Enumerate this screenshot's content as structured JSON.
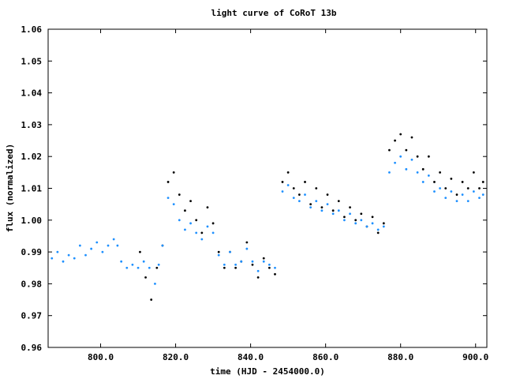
{
  "chart_data": {
    "type": "scatter",
    "title": "light curve of CoRoT 13b",
    "xlabel": "time (HJD - 2454000.0)",
    "ylabel": "flux (normalized)",
    "xlim": [
      786,
      903
    ],
    "ylim": [
      0.96,
      1.06
    ],
    "x_ticks": [
      {
        "value": 800,
        "label": "800.0"
      },
      {
        "value": 820,
        "label": "820.0"
      },
      {
        "value": 840,
        "label": "840.0"
      },
      {
        "value": 860,
        "label": "860.0"
      },
      {
        "value": 880,
        "label": "880.0"
      },
      {
        "value": 900,
        "label": "900.0"
      }
    ],
    "y_ticks": [
      {
        "value": 0.96,
        "label": "0.96"
      },
      {
        "value": 0.97,
        "label": "0.97"
      },
      {
        "value": 0.98,
        "label": "0.98"
      },
      {
        "value": 0.99,
        "label": "0.99"
      },
      {
        "value": 1.0,
        "label": "1.00"
      },
      {
        "value": 1.01,
        "label": "1.01"
      },
      {
        "value": 1.02,
        "label": "1.02"
      },
      {
        "value": 1.03,
        "label": "1.03"
      },
      {
        "value": 1.04,
        "label": "1.04"
      },
      {
        "value": 1.05,
        "label": "1.05"
      },
      {
        "value": 1.06,
        "label": "1.06"
      }
    ],
    "grid": false,
    "series": [
      {
        "color": "#000000",
        "points": [
          [
            810.5,
            0.99
          ],
          [
            812.0,
            0.982
          ],
          [
            813.5,
            0.975
          ],
          [
            815.0,
            0.985
          ],
          [
            816.5,
            0.992
          ],
          [
            818.0,
            1.012
          ],
          [
            819.5,
            1.015
          ],
          [
            821.0,
            1.008
          ],
          [
            822.5,
            1.003
          ],
          [
            824.0,
            1.006
          ],
          [
            825.5,
            1.0
          ],
          [
            827.0,
            0.996
          ],
          [
            828.5,
            1.004
          ],
          [
            830.0,
            0.999
          ],
          [
            831.5,
            0.99
          ],
          [
            833.0,
            0.985
          ],
          [
            834.5,
            0.99
          ],
          [
            836.0,
            0.985
          ],
          [
            837.5,
            0.987
          ],
          [
            839.0,
            0.993
          ],
          [
            840.5,
            0.986
          ],
          [
            842.0,
            0.982
          ],
          [
            843.5,
            0.988
          ],
          [
            845.0,
            0.985
          ],
          [
            846.5,
            0.983
          ],
          [
            848.5,
            1.012
          ],
          [
            850.0,
            1.015
          ],
          [
            851.5,
            1.01
          ],
          [
            853.0,
            1.008
          ],
          [
            854.5,
            1.012
          ],
          [
            856.0,
            1.005
          ],
          [
            857.5,
            1.01
          ],
          [
            859.0,
            1.004
          ],
          [
            860.5,
            1.008
          ],
          [
            862.0,
            1.003
          ],
          [
            863.5,
            1.006
          ],
          [
            865.0,
            1.001
          ],
          [
            866.5,
            1.004
          ],
          [
            868.0,
            1.0
          ],
          [
            869.5,
            1.002
          ],
          [
            871.0,
            0.998
          ],
          [
            872.5,
            1.001
          ],
          [
            874.0,
            0.996
          ],
          [
            875.5,
            0.999
          ],
          [
            877.0,
            1.022
          ],
          [
            878.5,
            1.025
          ],
          [
            880.0,
            1.027
          ],
          [
            881.5,
            1.022
          ],
          [
            883.0,
            1.026
          ],
          [
            884.5,
            1.02
          ],
          [
            886.0,
            1.016
          ],
          [
            887.5,
            1.02
          ],
          [
            889.0,
            1.012
          ],
          [
            890.5,
            1.015
          ],
          [
            892.0,
            1.01
          ],
          [
            893.5,
            1.013
          ],
          [
            895.0,
            1.008
          ],
          [
            896.5,
            1.012
          ],
          [
            898.0,
            1.01
          ],
          [
            899.5,
            1.015
          ],
          [
            901.0,
            1.01
          ],
          [
            902.0,
            1.012
          ]
        ]
      },
      {
        "color": "#1e90ff",
        "points": [
          [
            787.0,
            0.988
          ],
          [
            788.5,
            0.99
          ],
          [
            790.0,
            0.987
          ],
          [
            791.5,
            0.989
          ],
          [
            793.0,
            0.988
          ],
          [
            794.5,
            0.992
          ],
          [
            796.0,
            0.989
          ],
          [
            797.5,
            0.991
          ],
          [
            799.0,
            0.993
          ],
          [
            800.5,
            0.99
          ],
          [
            802.0,
            0.992
          ],
          [
            803.5,
            0.994
          ],
          [
            804.5,
            0.992
          ],
          [
            805.5,
            0.987
          ],
          [
            807.0,
            0.985
          ],
          [
            808.5,
            0.986
          ],
          [
            810.0,
            0.985
          ],
          [
            811.5,
            0.987
          ],
          [
            813.0,
            0.985
          ],
          [
            814.5,
            0.98
          ],
          [
            815.5,
            0.986
          ],
          [
            816.5,
            0.992
          ],
          [
            818.0,
            1.007
          ],
          [
            819.5,
            1.005
          ],
          [
            821.0,
            1.0
          ],
          [
            822.5,
            0.997
          ],
          [
            824.0,
            0.999
          ],
          [
            825.5,
            0.996
          ],
          [
            827.0,
            0.994
          ],
          [
            828.5,
            0.998
          ],
          [
            830.0,
            0.996
          ],
          [
            831.5,
            0.989
          ],
          [
            833.0,
            0.986
          ],
          [
            834.5,
            0.99
          ],
          [
            836.0,
            0.986
          ],
          [
            837.5,
            0.987
          ],
          [
            839.0,
            0.991
          ],
          [
            840.5,
            0.987
          ],
          [
            842.0,
            0.984
          ],
          [
            843.5,
            0.987
          ],
          [
            845.0,
            0.986
          ],
          [
            846.5,
            0.985
          ],
          [
            848.5,
            1.009
          ],
          [
            850.0,
            1.011
          ],
          [
            851.5,
            1.007
          ],
          [
            853.0,
            1.006
          ],
          [
            854.5,
            1.008
          ],
          [
            856.0,
            1.004
          ],
          [
            857.5,
            1.006
          ],
          [
            859.0,
            1.003
          ],
          [
            860.5,
            1.005
          ],
          [
            862.0,
            1.002
          ],
          [
            863.5,
            1.003
          ],
          [
            865.0,
            1.0
          ],
          [
            866.5,
            1.002
          ],
          [
            868.0,
            0.999
          ],
          [
            869.5,
            1.0
          ],
          [
            871.0,
            0.998
          ],
          [
            872.5,
            0.999
          ],
          [
            874.0,
            0.997
          ],
          [
            875.5,
            0.998
          ],
          [
            877.0,
            1.015
          ],
          [
            878.5,
            1.018
          ],
          [
            880.0,
            1.02
          ],
          [
            881.5,
            1.016
          ],
          [
            883.0,
            1.019
          ],
          [
            884.5,
            1.015
          ],
          [
            886.0,
            1.012
          ],
          [
            887.5,
            1.014
          ],
          [
            889.0,
            1.009
          ],
          [
            890.5,
            1.01
          ],
          [
            892.0,
            1.007
          ],
          [
            893.5,
            1.009
          ],
          [
            895.0,
            1.006
          ],
          [
            896.5,
            1.008
          ],
          [
            898.0,
            1.006
          ],
          [
            899.5,
            1.009
          ],
          [
            901.0,
            1.007
          ],
          [
            902.0,
            1.008
          ]
        ]
      }
    ]
  }
}
